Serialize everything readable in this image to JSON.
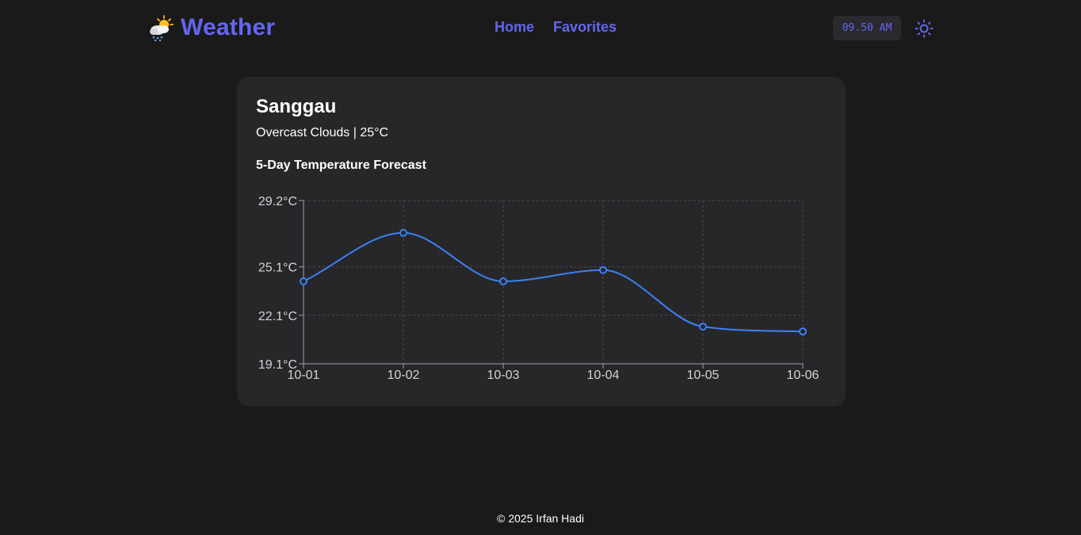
{
  "header": {
    "brand_icon": "sun-behind-rain-cloud-icon",
    "brand_title": "Weather",
    "nav": [
      "Home",
      "Favorites"
    ],
    "clock": "09.50 AM",
    "theme_icon": "sun-icon"
  },
  "colors": {
    "background": "#1a1a1a",
    "card": "#27272a",
    "accent": "#6366f1",
    "line": "#3b82f6"
  },
  "card": {
    "city": "Sanggau",
    "condition": "Overcast Clouds | 25°C",
    "forecast_title": "5-Day Temperature Forecast"
  },
  "chart_data": {
    "type": "line",
    "categories": [
      "10-01",
      "10-02",
      "10-03",
      "10-04",
      "10-05",
      "10-06"
    ],
    "series": [
      {
        "values": [
          24.2,
          27.2,
          24.2,
          24.9,
          21.4,
          21.1
        ]
      }
    ],
    "yticks": [
      19.1,
      22.1,
      25.1,
      29.2
    ],
    "ytick_labels": [
      "19.1°C",
      "22.1°C",
      "25.1°C",
      "29.2°C"
    ],
    "ylim": [
      19.1,
      29.2
    ],
    "grid": true,
    "smooth": true
  },
  "footer": {
    "text": "© 2025 Irfan Hadi"
  }
}
